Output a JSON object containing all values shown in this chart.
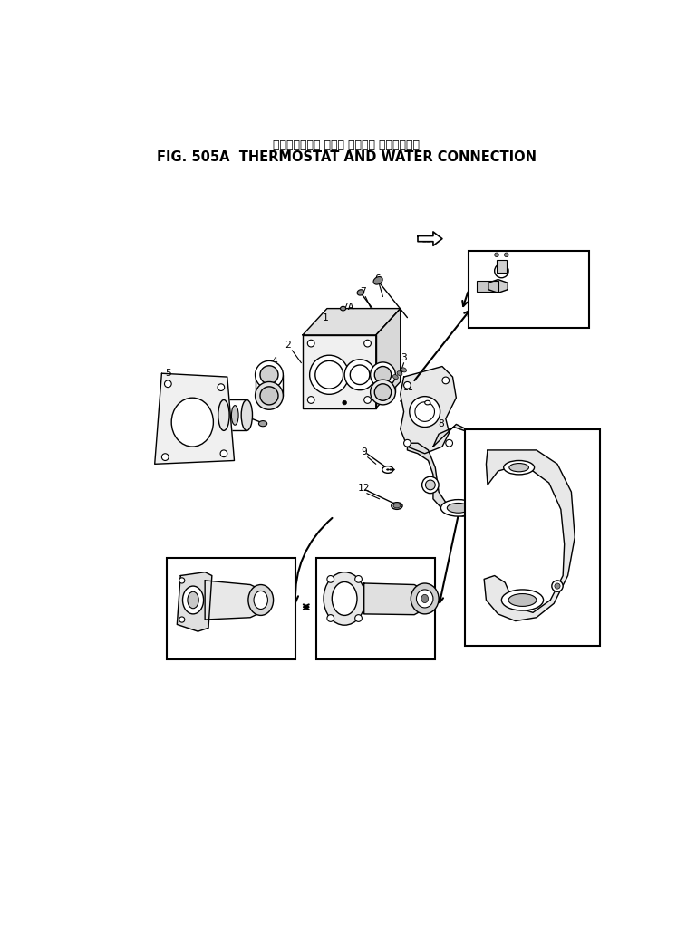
{
  "title_jp": "サーモスタット および ウォータ コネクション",
  "title_en": "FIG. 505A  THERMOSTAT AND WATER CONNECTION",
  "bg_color": "#ffffff",
  "line_color": "#000000",
  "fig_width": 7.47,
  "fig_height": 10.29,
  "dpi": 100
}
